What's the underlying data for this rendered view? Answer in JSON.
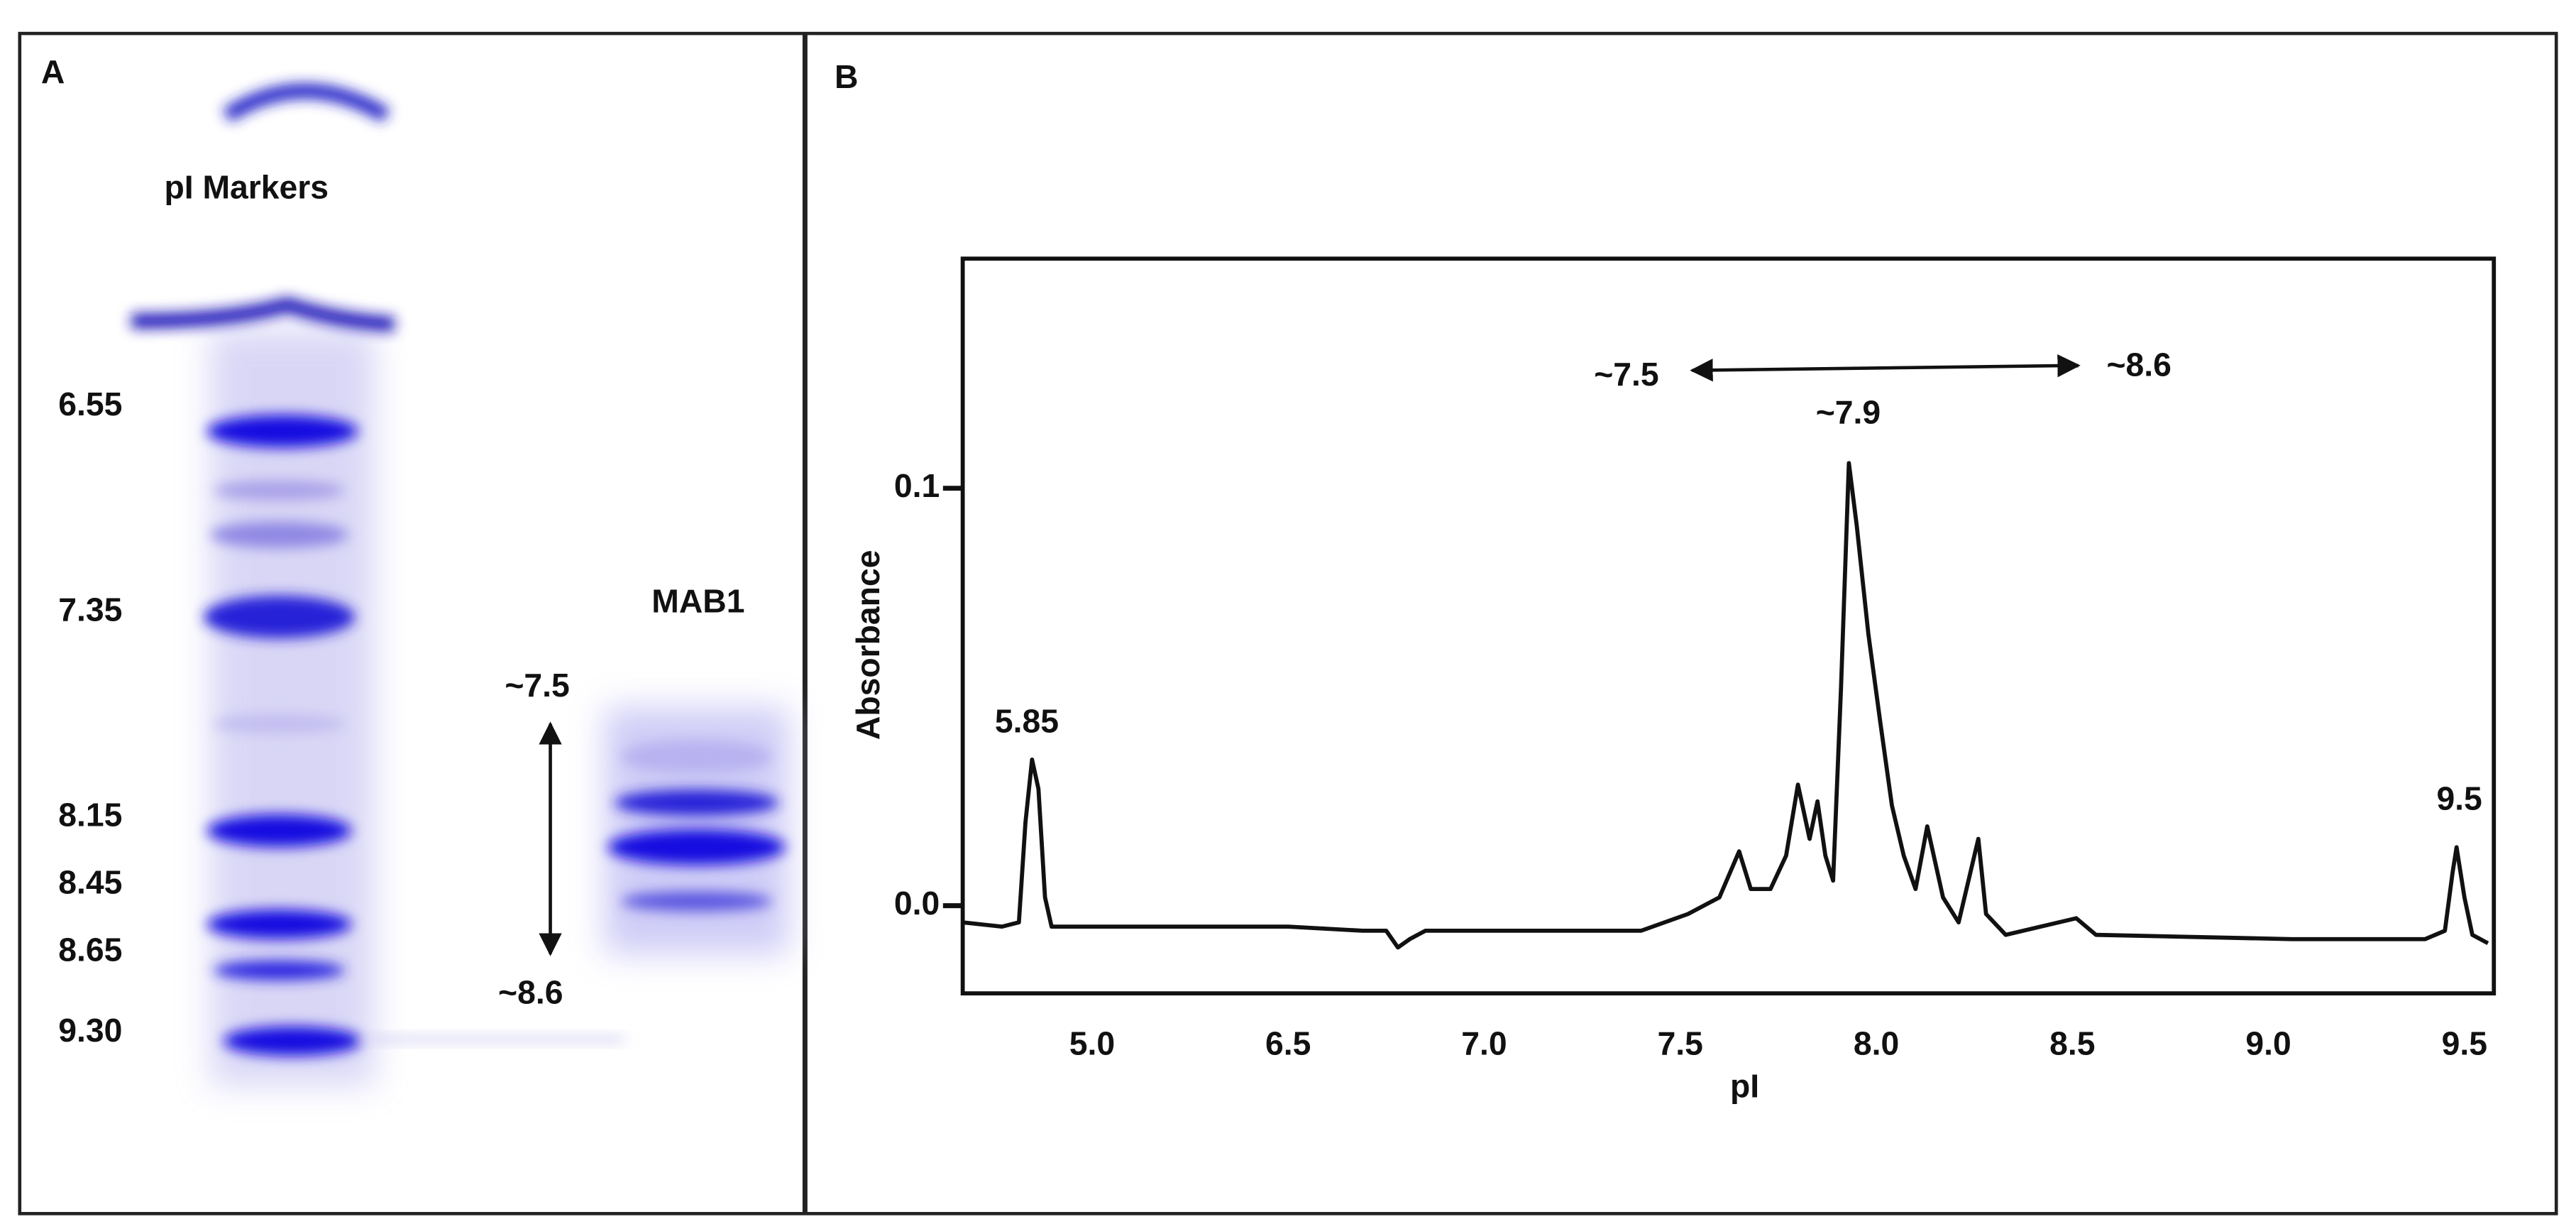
{
  "panel_a": {
    "label": "A",
    "title": "pI Markers",
    "markers": [
      "6.55",
      "7.35",
      "8.15",
      "8.45",
      "8.65",
      "9.30"
    ],
    "sample": "MAB1",
    "range_top": "~7.5",
    "range_bottom": "~8.6"
  },
  "panel_b": {
    "label": "B"
  },
  "chart_data": {
    "type": "line",
    "x_label": "pI",
    "y_label": "Absorbance",
    "color": "#111111",
    "x": [
      4.01,
      4.31,
      4.44,
      4.49,
      4.54,
      4.59,
      4.64,
      4.69,
      5.44,
      6.5,
      6.69,
      6.75,
      6.78,
      6.81,
      6.85,
      7.0,
      7.23,
      7.4,
      7.52,
      7.6,
      7.65,
      7.68,
      7.73,
      7.77,
      7.8,
      7.83,
      7.85,
      7.87,
      7.89,
      7.91,
      7.93,
      7.95,
      7.98,
      8.01,
      8.04,
      8.07,
      8.1,
      8.13,
      8.17,
      8.21,
      8.26,
      8.28,
      8.33,
      8.51,
      8.56,
      9.06,
      9.4,
      9.45,
      9.47,
      9.48,
      9.5,
      9.52,
      9.56
    ],
    "values": [
      -0.004,
      -0.005,
      -0.004,
      0.02,
      0.035,
      0.028,
      0.002,
      -0.005,
      -0.005,
      -0.005,
      -0.006,
      -0.006,
      -0.01,
      -0.008,
      -0.006,
      -0.006,
      -0.006,
      -0.006,
      -0.002,
      0.002,
      0.013,
      0.004,
      0.004,
      0.012,
      0.029,
      0.016,
      0.025,
      0.012,
      0.006,
      0.052,
      0.106,
      0.091,
      0.065,
      0.044,
      0.024,
      0.012,
      0.004,
      0.019,
      0.002,
      -0.004,
      0.016,
      -0.002,
      -0.007,
      -0.003,
      -0.007,
      -0.008,
      -0.008,
      -0.006,
      0.008,
      0.014,
      0.002,
      -0.007,
      -0.009
    ],
    "xlim": [
      4.01,
      9.575
    ],
    "xticks": [
      {
        "value": 5,
        "label": "5.0"
      },
      6.5,
      {
        "value": 7,
        "label": "7.0"
      },
      7.5,
      {
        "value": 8,
        "label": "8.0"
      },
      8.5,
      {
        "value": 9,
        "label": "9.0"
      },
      9.5
    ],
    "ylim": [
      -0.021,
      0.155
    ],
    "yticks": [
      {
        "value": 0,
        "label": "0.0"
      },
      0.1
    ],
    "annotations": [
      "~7.5",
      "~8.6",
      "~7.9",
      "5.85",
      "9.5"
    ]
  }
}
